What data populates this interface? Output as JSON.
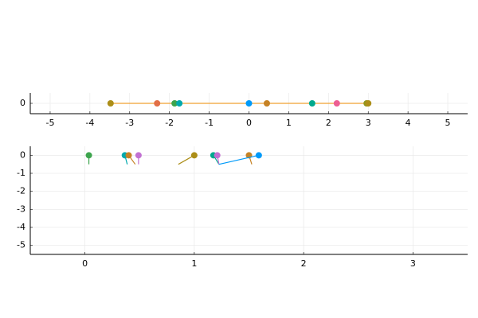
{
  "chart_data": [
    {
      "type": "scatter",
      "xlim": [
        -5.5,
        5.5
      ],
      "ylim": [
        -0.5,
        0.5
      ],
      "xticks": [
        -5,
        -4,
        -3,
        -2,
        -1,
        0,
        1,
        2,
        3,
        4,
        5
      ],
      "yticks": [
        0
      ],
      "grid": true,
      "series": [
        {
          "color": "#f0a030",
          "marker": false,
          "x": [
            -3.48,
            3.0
          ],
          "values": [
            0,
            0
          ]
        },
        {
          "color": "#ac8e18",
          "marker": true,
          "x": [
            -3.48
          ],
          "values": [
            0
          ]
        },
        {
          "color": "#e26f46",
          "marker": true,
          "x": [
            -2.31
          ],
          "values": [
            0
          ]
        },
        {
          "color": "#3da44d",
          "marker": true,
          "x": [
            -1.87
          ],
          "values": [
            0
          ]
        },
        {
          "color": "#00a9ad",
          "marker": true,
          "x": [
            -1.75
          ],
          "values": [
            0
          ]
        },
        {
          "color": "#009af9",
          "marker": true,
          "x": [
            0
          ],
          "values": [
            0
          ]
        },
        {
          "color": "#c68225",
          "marker": true,
          "x": [
            0.45
          ],
          "values": [
            0
          ]
        },
        {
          "color": "#00a98d",
          "marker": true,
          "x": [
            1.59
          ],
          "values": [
            0
          ]
        },
        {
          "color": "#ed5e93",
          "marker": true,
          "x": [
            2.21
          ],
          "values": [
            0
          ]
        },
        {
          "color": "#8e971d",
          "marker": true,
          "x": [
            2.96
          ],
          "values": [
            0
          ]
        },
        {
          "color": "#ac8e18",
          "marker": true,
          "x": [
            3.0
          ],
          "values": [
            0
          ]
        }
      ]
    },
    {
      "type": "scatter",
      "xlim": [
        -0.5,
        3.5
      ],
      "ylim": [
        -5.5,
        0.5
      ],
      "xticks": [
        0,
        1,
        2,
        3
      ],
      "yticks": [
        0,
        -1,
        -2,
        -3,
        -4,
        -5
      ],
      "grid": true,
      "series": [
        {
          "color": "#3da44d",
          "marker": true,
          "x": [
            0.036,
            0.036
          ],
          "values": [
            0,
            -0.5
          ]
        },
        {
          "color": "#00a9ad",
          "marker": true,
          "x": [
            0.365,
            0.387
          ],
          "values": [
            0,
            -0.5
          ]
        },
        {
          "color": "#c68225",
          "marker": true,
          "x": [
            0.4,
            0.46
          ],
          "values": [
            0,
            -0.5
          ]
        },
        {
          "color": "#c271d2",
          "marker": true,
          "x": [
            0.49,
            0.49
          ],
          "values": [
            0,
            -0.5
          ]
        },
        {
          "color": "#ac8e18",
          "marker": true,
          "x": [
            1.0,
            0.854
          ],
          "values": [
            0,
            -0.5
          ]
        },
        {
          "color": "#00a98d",
          "marker": true,
          "x": [
            1.175,
            1.226
          ],
          "values": [
            0,
            -0.5
          ]
        },
        {
          "color": "#c271d2",
          "marker": true,
          "x": [
            1.21,
            1.226
          ],
          "values": [
            0,
            -0.5
          ]
        },
        {
          "color": "#c68225",
          "marker": true,
          "x": [
            1.5,
            1.526
          ],
          "values": [
            0,
            -0.5
          ]
        },
        {
          "color": "#009af9",
          "marker": true,
          "x": [
            1.59,
            1.226
          ],
          "values": [
            0,
            -0.5
          ]
        }
      ]
    }
  ]
}
